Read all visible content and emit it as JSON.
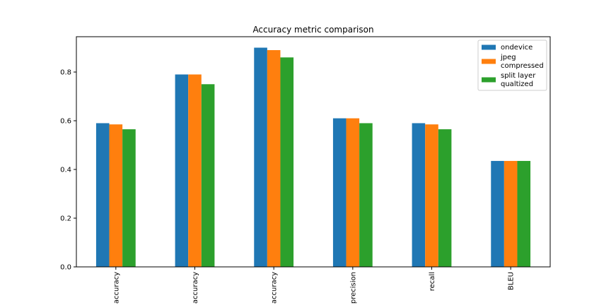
{
  "chart_data": {
    "type": "bar",
    "title": "Accuracy metric comparison",
    "xlabel": "",
    "ylabel": "",
    "categories": [
      "accuracy",
      "accuracy",
      "accuracy",
      "precision",
      "recall",
      "BLEU"
    ],
    "series": [
      {
        "name": "ondevice",
        "color": "#1f77b4",
        "values": [
          0.59,
          0.79,
          0.9,
          0.61,
          0.59,
          0.435
        ]
      },
      {
        "name": "jpeg\ncompressed",
        "color": "#ff7f0e",
        "values": [
          0.585,
          0.79,
          0.89,
          0.61,
          0.585,
          0.435
        ]
      },
      {
        "name": "split layer\nqualtized",
        "color": "#2ca02c",
        "values": [
          0.565,
          0.75,
          0.86,
          0.59,
          0.565,
          0.435
        ]
      }
    ],
    "ylim": [
      0,
      0.945
    ],
    "yticks": [
      "0.0",
      "0.2",
      "0.4",
      "0.6",
      "0.8"
    ],
    "grid": false,
    "legend_position": "top-right"
  }
}
